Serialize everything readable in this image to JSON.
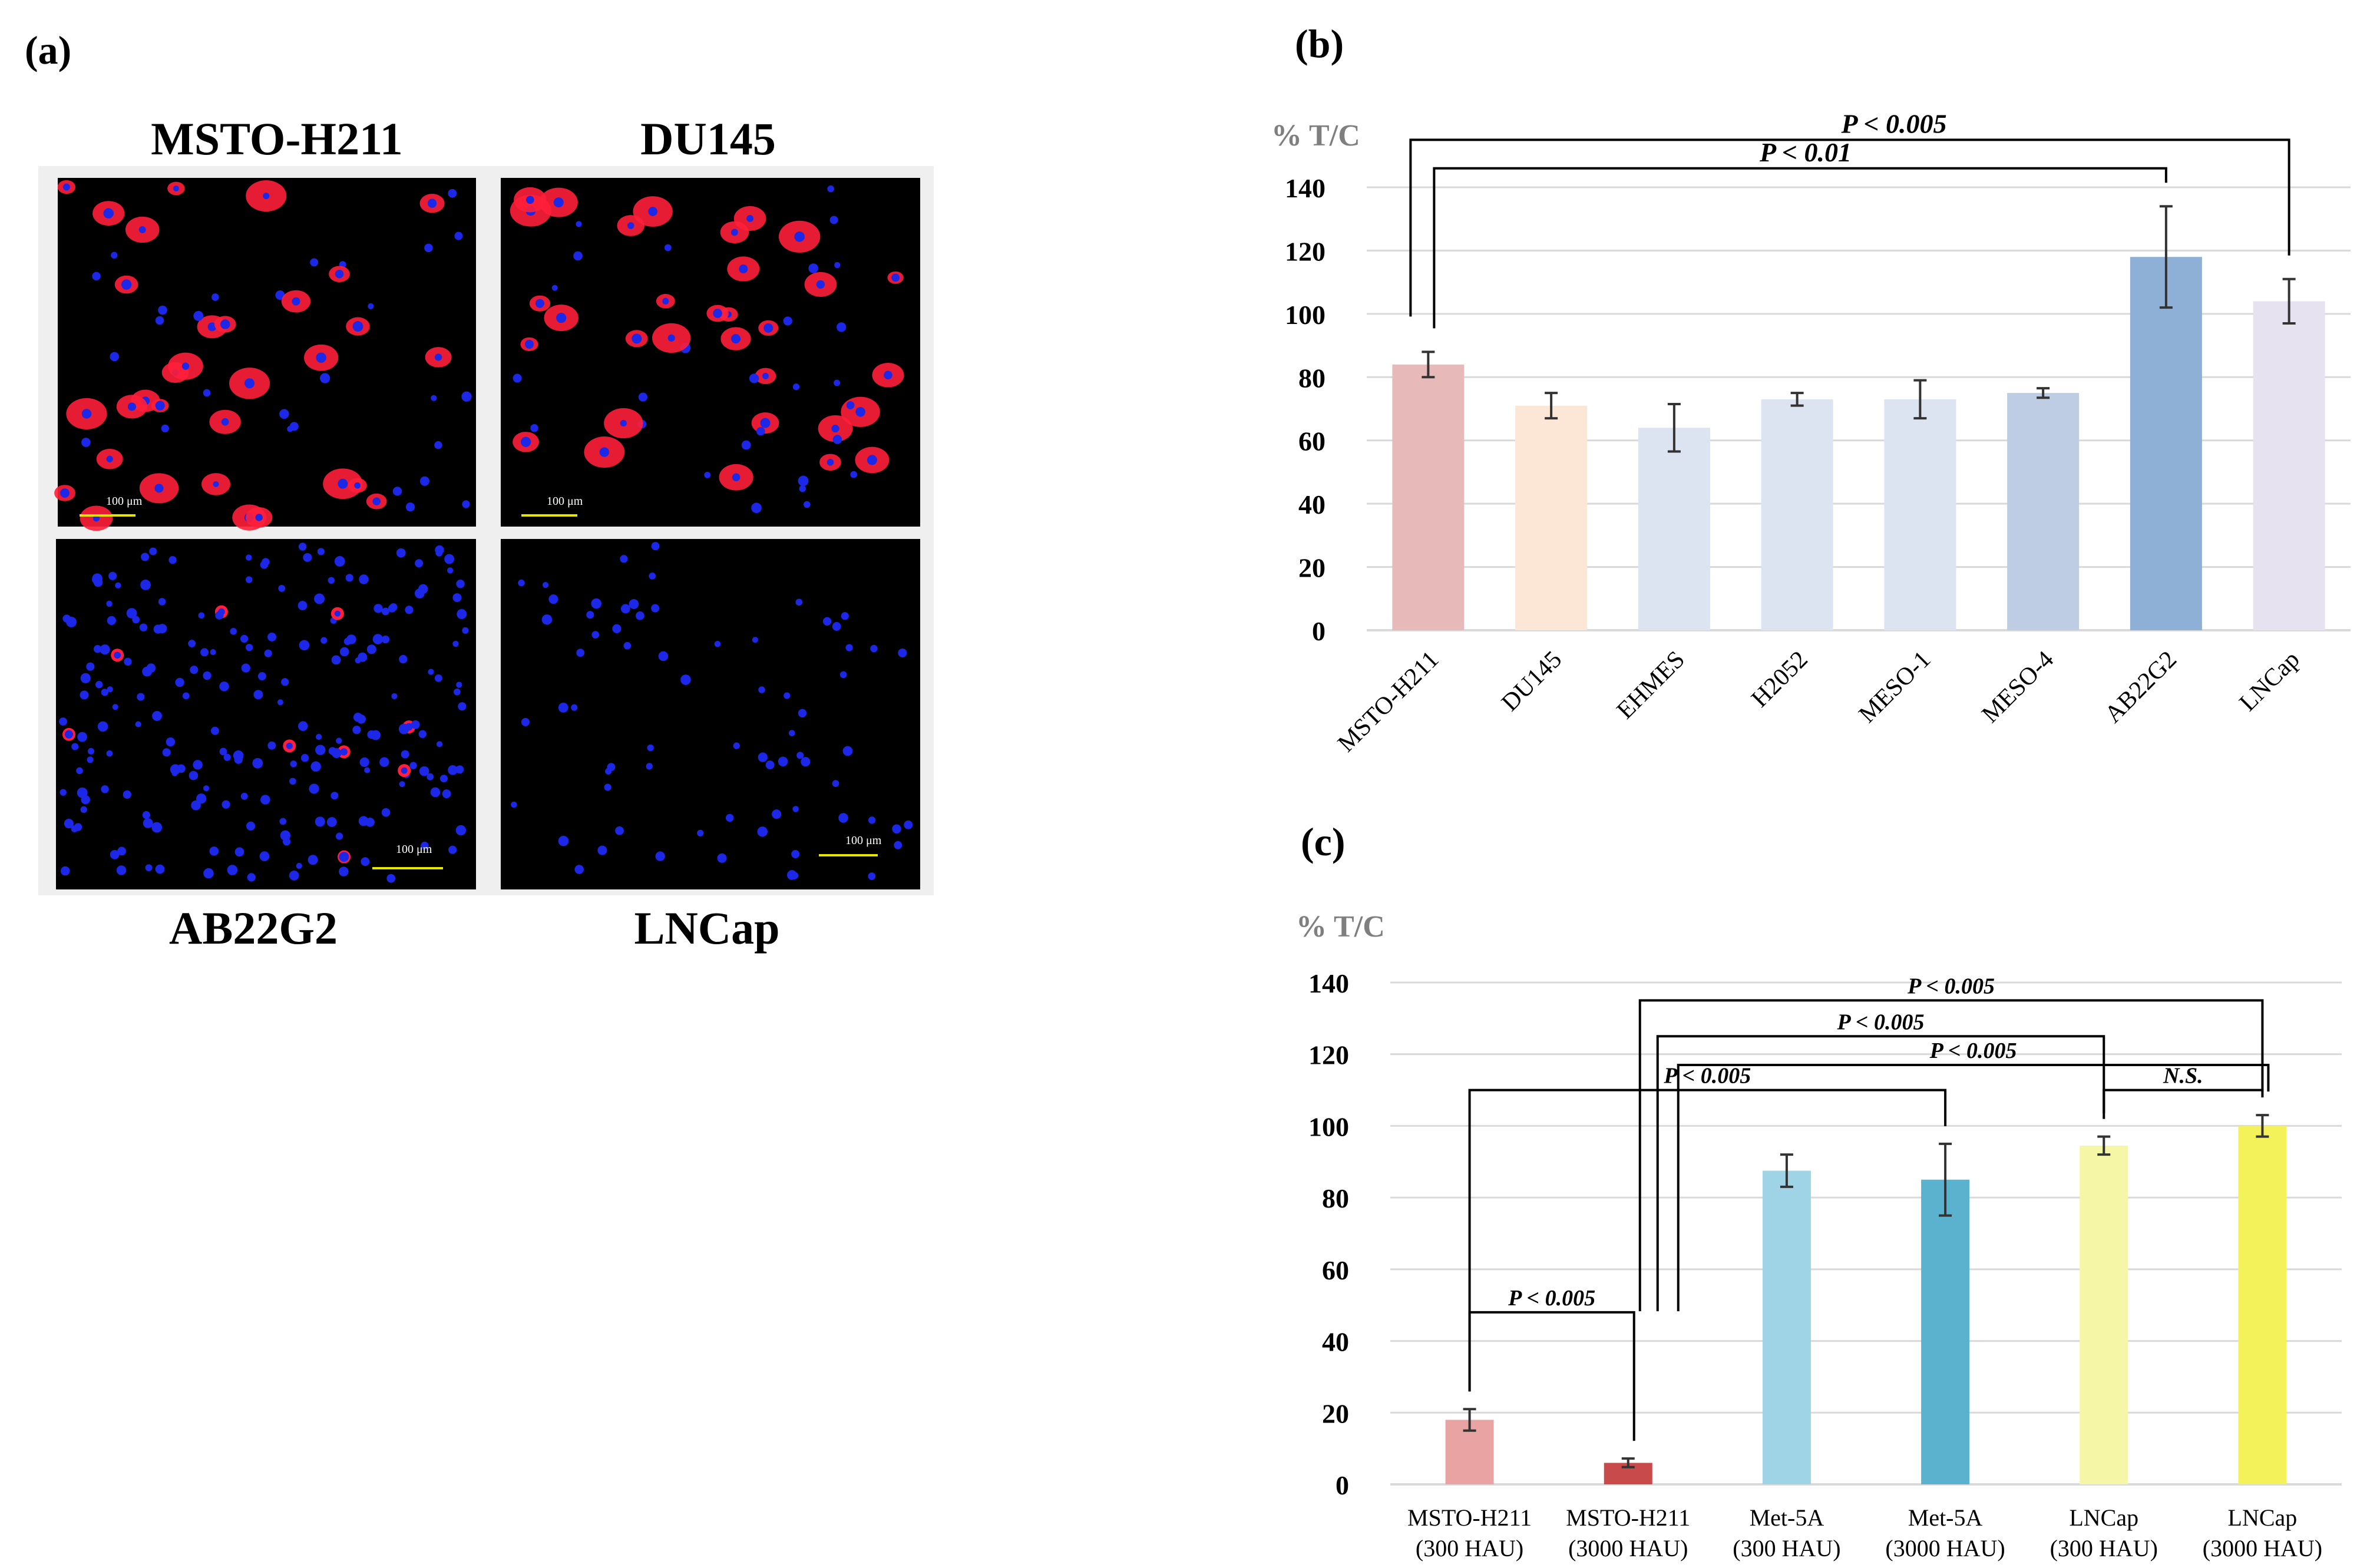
{
  "panels": {
    "a": {
      "label": "(a)",
      "images": [
        {
          "title": "MSTO-H211",
          "scale_bar": "100 μm",
          "nuclei_color": "#1d27e8",
          "stain_color": "#ff1f3a",
          "stain_level": "high"
        },
        {
          "title": "DU145",
          "scale_bar": "100 μm",
          "nuclei_color": "#1d27e8",
          "stain_color": "#ff1f3a",
          "stain_level": "high"
        },
        {
          "title": "AB22G2",
          "scale_bar": "100 μm",
          "nuclei_color": "#1d27e8",
          "stain_color": "#ff1f3a",
          "stain_level": "low"
        },
        {
          "title": "LNCap",
          "scale_bar": "100 μm",
          "nuclei_color": "#1d27e8",
          "stain_color": "#ff1f3a",
          "stain_level": "none"
        }
      ]
    },
    "b": {
      "label": "(b)"
    },
    "c": {
      "label": "(c)"
    }
  },
  "chart_data": [
    {
      "panel": "b",
      "type": "bar",
      "ylabel": "% T/C",
      "ylim": [
        0,
        140
      ],
      "yticks": [
        0,
        20,
        40,
        60,
        80,
        100,
        120,
        140
      ],
      "grid": true,
      "categories": [
        "MSTO-H211",
        "DU145",
        "EHMES",
        "H2052",
        "MESO-1",
        "MESO-4",
        "AB22G2",
        "LNCap"
      ],
      "values": [
        84,
        71,
        64,
        73,
        73,
        75,
        118,
        104
      ],
      "errors": [
        4,
        4,
        7.5,
        2,
        6,
        1.5,
        16,
        7
      ],
      "colors": [
        "#e7b9b9",
        "#fce7d7",
        "#dde4f1",
        "#dde4f1",
        "#dde4f1",
        "#bfcde4",
        "#8fb0d6",
        "#e6e2ef"
      ],
      "annotations": [
        {
          "text": "P < 0.005",
          "from": 0,
          "to": 7,
          "y": 155
        },
        {
          "text": "P < 0.01",
          "from": 0,
          "to": 6,
          "y": 146
        }
      ]
    },
    {
      "panel": "c",
      "type": "bar",
      "ylabel": "% T/C",
      "ylim": [
        0,
        140
      ],
      "yticks": [
        0,
        20,
        40,
        60,
        80,
        100,
        120,
        140
      ],
      "grid": true,
      "categories": [
        {
          "line1": "MSTO-H211",
          "line2": "(300 HAU)"
        },
        {
          "line1": "MSTO-H211",
          "line2": "(3000 HAU)"
        },
        {
          "line1": "Met-5A",
          "line2": "(300 HAU)"
        },
        {
          "line1": "Met-5A",
          "line2": "(3000 HAU)"
        },
        {
          "line1": "LNCap",
          "line2": "(300 HAU)"
        },
        {
          "line1": "LNCap",
          "line2": "(3000 HAU)"
        }
      ],
      "values": [
        18,
        6,
        87.5,
        85,
        94.5,
        100
      ],
      "errors": [
        3,
        1.2,
        4.5,
        10,
        2.5,
        3
      ],
      "colors": [
        "#e9a3a3",
        "#c94a4a",
        "#9fd3e6",
        "#5ab2cf",
        "#f6f7a6",
        "#f3f25a"
      ],
      "annotations": [
        {
          "text": "P < 0.005",
          "from": 0,
          "to": 1,
          "y": 48
        },
        {
          "text": "P < 0.005",
          "from": 0,
          "to": 3,
          "y": 110
        },
        {
          "text": "P < 0.005",
          "from": 1,
          "to": 4,
          "y": 125
        },
        {
          "text": "P < 0.005",
          "from": 1,
          "to": 5,
          "y": 135
        },
        {
          "text": "P < 0.005",
          "from": 1,
          "to": 5,
          "y": 117
        },
        {
          "text": "N.S.",
          "from": 4,
          "to": 5,
          "y": 110
        }
      ]
    }
  ]
}
